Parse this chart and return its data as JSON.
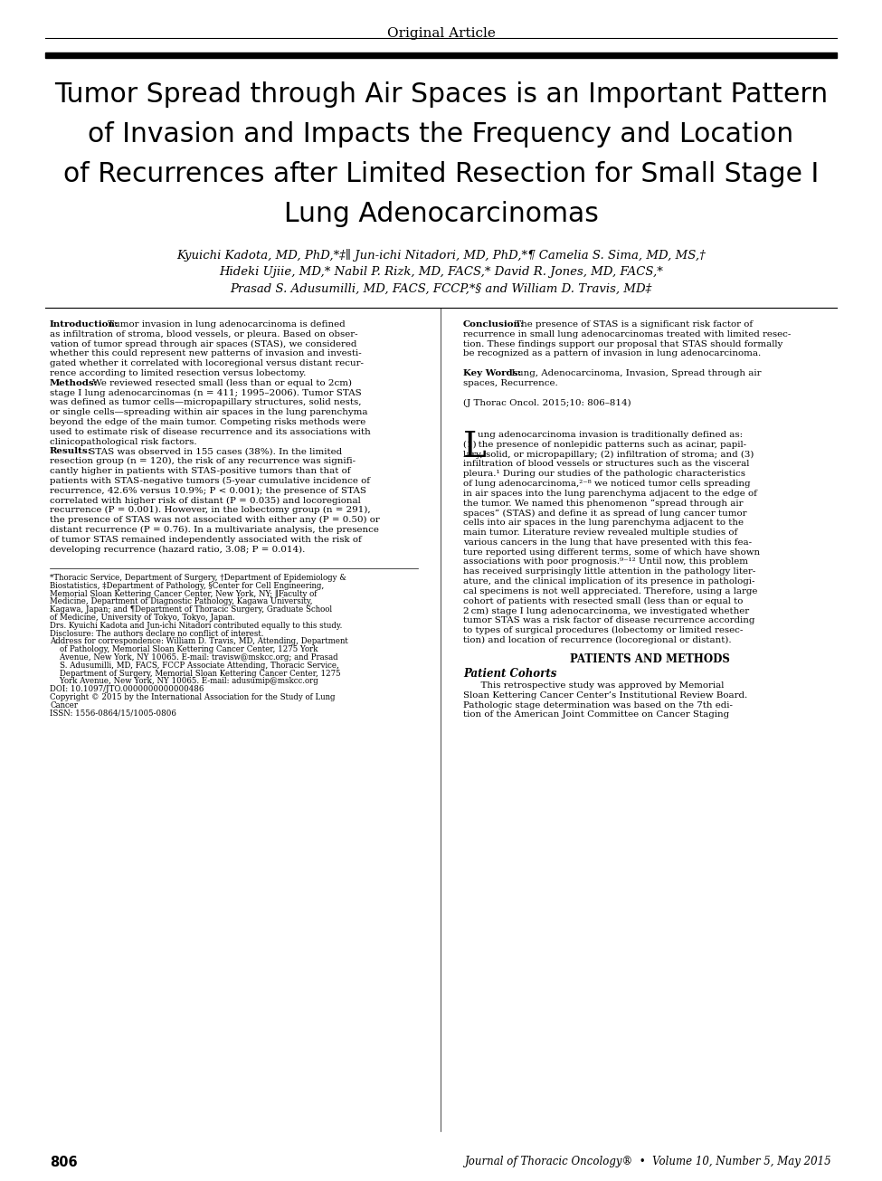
{
  "background_color": "#ffffff",
  "header_label": "Original Article",
  "title_lines": [
    "Tumor Spread through Air Spaces is an Important Pattern",
    "of Invasion and Impacts the Frequency and Location",
    "of Recurrences after Limited Resection for Small Stage I",
    "Lung Adenocarcinomas"
  ],
  "authors_line1": "Kyuichi Kadota, MD, PhD,*‡∥ Jun-ichi Nitadori, MD, PhD,*¶ Camelia S. Sima, MD, MS,†",
  "authors_line2": "Hideki Ujiie, MD,* Nabil P. Rizk, MD, FACS,* David R. Jones, MD, FACS,*",
  "authors_line3": "Prasad S. Adusumilli, MD, FACS, FCCP,*§ and William D. Travis, MD‡",
  "left_col_lines": [
    [
      "Introduction:",
      " Tumor invasion in lung adenocarcinoma is defined"
    ],
    [
      null,
      "as infiltration of stroma, blood vessels, or pleura. Based on obser-"
    ],
    [
      null,
      "vation of tumor spread through air spaces (STAS), we considered"
    ],
    [
      null,
      "whether this could represent new patterns of invasion and investi-"
    ],
    [
      null,
      "gated whether it correlated with locoregional versus distant recur-"
    ],
    [
      null,
      "rence according to limited resection versus lobectomy."
    ],
    [
      "Methods:",
      " We reviewed resected small (less than or equal to 2cm)"
    ],
    [
      null,
      "stage I lung adenocarcinomas (n = 411; 1995–2006). Tumor STAS"
    ],
    [
      null,
      "was defined as tumor cells—micropapillary structures, solid nests,"
    ],
    [
      null,
      "or single cells—spreading within air spaces in the lung parenchyma"
    ],
    [
      null,
      "beyond the edge of the main tumor. Competing risks methods were"
    ],
    [
      null,
      "used to estimate risk of disease recurrence and its associations with"
    ],
    [
      null,
      "clinicopathological risk factors."
    ],
    [
      "Results:",
      " STAS was observed in 155 cases (38%). In the limited"
    ],
    [
      null,
      "resection group (n = 120), the risk of any recurrence was signifi-"
    ],
    [
      null,
      "cantly higher in patients with STAS-positive tumors than that of"
    ],
    [
      null,
      "patients with STAS-negative tumors (5-year cumulative incidence of"
    ],
    [
      null,
      "recurrence, 42.6% versus 10.9%; P < 0.001); the presence of STAS"
    ],
    [
      null,
      "correlated with higher risk of distant (P = 0.035) and locoregional"
    ],
    [
      null,
      "recurrence (P = 0.001). However, in the lobectomy group (n = 291),"
    ],
    [
      null,
      "the presence of STAS was not associated with either any (P = 0.50) or"
    ],
    [
      null,
      "distant recurrence (P = 0.76). In a multivariate analysis, the presence"
    ],
    [
      null,
      "of tumor STAS remained independently associated with the risk of"
    ],
    [
      null,
      "developing recurrence (hazard ratio, 3.08; P = 0.014)."
    ]
  ],
  "footnote_lines": [
    "*Thoracic Service, Department of Surgery, †Department of Epidemiology &",
    "Biostatistics, ‡Department of Pathology, §Center for Cell Engineering,",
    "Memorial Sloan Kettering Cancer Center, New York, NY; ∥Faculty of",
    "Medicine, Department of Diagnostic Pathology, Kagawa University,",
    "Kagawa, Japan; and ¶Department of Thoracic Surgery, Graduate School",
    "of Medicine, University of Tokyo, Tokyo, Japan.",
    "Drs. Kyuichi Kadota and Jun-ichi Nitadori contributed equally to this study.",
    "Disclosure: The authors declare no conflict of interest.",
    "Address for correspondence: William D. Travis, MD, Attending, Department",
    "    of Pathology, Memorial Sloan Kettering Cancer Center, 1275 York",
    "    Avenue, New York, NY 10065. E-mail: travisw@mskcc.org; and Prasad",
    "    S. Adusumilli, MD, FACS, FCCP Associate Attending, Thoracic Service,",
    "    Department of Surgery, Memorial Sloan Kettering Cancer Center, 1275",
    "    York Avenue, New York, NY 10065. E-mail: adusumip@mskcc.org",
    "DOI: 10.1097/JTO.0000000000000486",
    "Copyright © 2015 by the International Association for the Study of Lung",
    "Cancer",
    "ISSN: 1556-0864/15/1005-0806"
  ],
  "right_col_lines": [
    [
      "Conclusion:",
      " The presence of STAS is a significant risk factor of"
    ],
    [
      null,
      "recurrence in small lung adenocarcinomas treated with limited resec-"
    ],
    [
      null,
      "tion. These findings support our proposal that STAS should formally"
    ],
    [
      null,
      "be recognized as a pattern of invasion in lung adenocarcinoma."
    ],
    [
      null,
      ""
    ],
    [
      "Key Words:",
      " Lung, Adenocarcinoma, Invasion, Spread through air"
    ],
    [
      null,
      "spaces, Recurrence."
    ],
    [
      null,
      ""
    ],
    [
      null,
      "(J Thorac Oncol. 2015;10: 806–814)"
    ],
    [
      null,
      ""
    ]
  ],
  "body_lines": [
    "ung adenocarcinoma invasion is traditionally defined as:",
    "(1) the presence of nonlepidic patterns such as acinar, papil-",
    "lary, solid, or micropapillary; (2) infiltration of stroma; and (3)",
    "infiltration of blood vessels or structures such as the visceral",
    "pleura.¹ During our studies of the pathologic characteristics",
    "of lung adenocarcinoma,²⁻⁸ we noticed tumor cells spreading",
    "in air spaces into the lung parenchyma adjacent to the edge of",
    "the tumor. We named this phenomenon “spread through air",
    "spaces” (STAS) and define it as spread of lung cancer tumor",
    "cells into air spaces in the lung parenchyma adjacent to the",
    "main tumor. Literature review revealed multiple studies of",
    "various cancers in the lung that have presented with this fea-",
    "ture reported using different terms, some of which have shown",
    "associations with poor prognosis.⁹⁻¹² Until now, this problem",
    "has received surprisingly little attention in the pathology liter-",
    "ature, and the clinical implication of its presence in pathologi-",
    "cal specimens is not well appreciated. Therefore, using a large",
    "cohort of patients with resected small (less than or equal to",
    "2 cm) stage I lung adenocarcinoma, we investigated whether",
    "tumor STAS was a risk factor of disease recurrence according",
    "to types of surgical procedures (lobectomy or limited resec-",
    "tion) and location of recurrence (locoregional or distant)."
  ],
  "pm_header": "PATIENTS AND METHODS",
  "pc_header": "Patient Cohorts",
  "pc_lines": [
    "      This retrospective study was approved by Memorial",
    "Sloan Kettering Cancer Center’s Institutional Review Board.",
    "Pathologic stage determination was based on the 7th edi-",
    "tion of the American Joint Committee on Cancer Staging"
  ],
  "footer_page": "806",
  "footer_journal": "Journal of Thoracic Oncology®  •  Volume 10, Number 5, May 2015"
}
